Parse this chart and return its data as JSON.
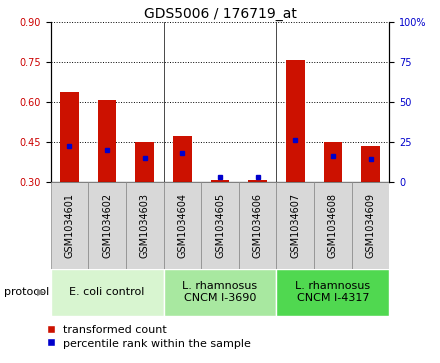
{
  "title": "GDS5006 / 176719_at",
  "samples": [
    "GSM1034601",
    "GSM1034602",
    "GSM1034603",
    "GSM1034604",
    "GSM1034605",
    "GSM1034606",
    "GSM1034607",
    "GSM1034608",
    "GSM1034609"
  ],
  "transformed_count": [
    0.635,
    0.605,
    0.45,
    0.47,
    0.305,
    0.305,
    0.755,
    0.45,
    0.435
  ],
  "percentile_rank": [
    22,
    20,
    15,
    18,
    3,
    3,
    26,
    16,
    14
  ],
  "baseline": 0.3,
  "ylim": [
    0.3,
    0.9
  ],
  "yticks": [
    0.3,
    0.45,
    0.6,
    0.75,
    0.9
  ],
  "right_yticks": [
    0,
    25,
    50,
    75,
    100
  ],
  "right_ylim": [
    0,
    100
  ],
  "groups": [
    {
      "label": "E. coli control",
      "start": 0,
      "end": 3,
      "color": "#d8f5d0"
    },
    {
      "label": "L. rhamnosus\nCNCM I-3690",
      "start": 3,
      "end": 6,
      "color": "#a8e8a0"
    },
    {
      "label": "L. rhamnosus\nCNCM I-4317",
      "start": 6,
      "end": 9,
      "color": "#50d850"
    }
  ],
  "bar_color": "#cc1100",
  "percentile_color": "#0000cc",
  "bar_width": 0.5,
  "title_fontsize": 10,
  "tick_fontsize": 7,
  "legend_fontsize": 8,
  "sample_label_fontsize": 7,
  "group_label_fontsize": 8,
  "protocol_fontsize": 8,
  "left_tick_color": "#cc0000",
  "right_tick_color": "#0000cc",
  "sample_box_color": "#d8d8d8",
  "sample_box_edge": "#888888"
}
